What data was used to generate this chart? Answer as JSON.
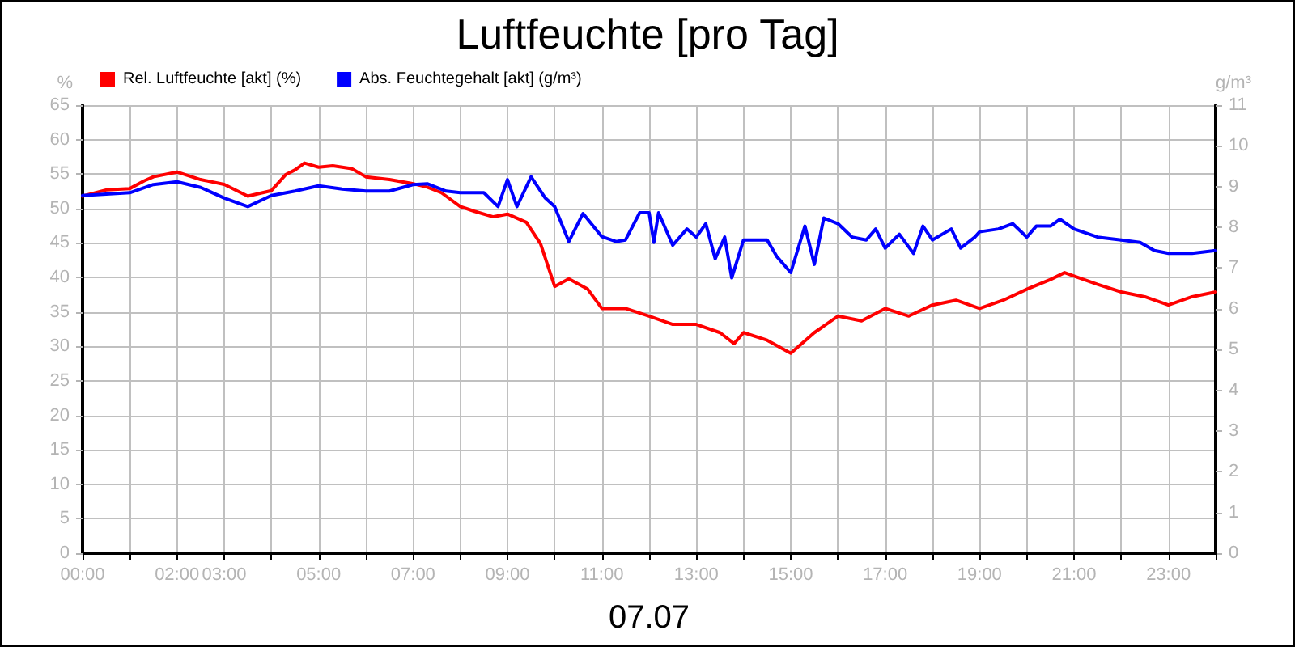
{
  "chart_data": {
    "type": "line",
    "title": "Luftfeuchte [pro Tag]",
    "xlabel": "07.07",
    "ylabel": "%",
    "y2label": "g/m³",
    "xlim": [
      0,
      24
    ],
    "xticks": [
      {
        "value": 0,
        "label": "00:00"
      },
      {
        "value": 1,
        "label": null
      },
      {
        "value": 2,
        "label": "02:00"
      },
      {
        "value": 3,
        "label": "03:00"
      },
      {
        "value": 4,
        "label": null
      },
      {
        "value": 5,
        "label": "05:00"
      },
      {
        "value": 6,
        "label": null
      },
      {
        "value": 7,
        "label": "07:00"
      },
      {
        "value": 8,
        "label": null
      },
      {
        "value": 9,
        "label": "09:00"
      },
      {
        "value": 10,
        "label": null
      },
      {
        "value": 11,
        "label": "11:00"
      },
      {
        "value": 12,
        "label": null
      },
      {
        "value": 13,
        "label": "13:00"
      },
      {
        "value": 14,
        "label": null
      },
      {
        "value": 15,
        "label": "15:00"
      },
      {
        "value": 16,
        "label": null
      },
      {
        "value": 17,
        "label": "17:00"
      },
      {
        "value": 18,
        "label": null
      },
      {
        "value": 19,
        "label": "19:00"
      },
      {
        "value": 20,
        "label": null
      },
      {
        "value": 21,
        "label": "21:00"
      },
      {
        "value": 22,
        "label": null
      },
      {
        "value": 23,
        "label": "23:00"
      },
      {
        "value": 24,
        "label": null
      }
    ],
    "ylim": [
      0,
      65
    ],
    "yticks": [
      0,
      5,
      10,
      15,
      20,
      25,
      30,
      35,
      40,
      45,
      50,
      55,
      60,
      65
    ],
    "y2lim": [
      0,
      11
    ],
    "y2ticks": [
      0,
      1,
      2,
      3,
      4,
      5,
      6,
      7,
      8,
      9,
      10,
      11
    ],
    "grid": true,
    "legend": "top left",
    "marker": "none",
    "line_style": "solid",
    "series": [
      {
        "name": "Rel. Luftfeuchte [akt] (%)",
        "color": "#ff0000",
        "x": [
          0,
          0.5,
          1,
          1.3,
          1.5,
          2,
          2.5,
          3,
          3.5,
          4,
          4.3,
          4.5,
          4.7,
          5,
          5.3,
          5.7,
          6,
          6.5,
          7,
          7.3,
          7.6,
          8,
          8.3,
          8.7,
          9,
          9.4,
          9.7,
          10,
          10.3,
          10.7,
          11,
          11.5,
          12,
          12.5,
          13,
          13.5,
          13.8,
          14,
          14.5,
          15,
          15.5,
          16,
          16.5,
          17,
          17.5,
          18,
          18.5,
          19,
          19.5,
          20,
          20.5,
          20.8,
          21,
          21.5,
          22,
          22.5,
          23,
          23.5,
          24
        ],
        "values": [
          51.8,
          52.7,
          52.9,
          54,
          54.6,
          55.3,
          54.2,
          53.5,
          51.8,
          52.6,
          54.9,
          55.6,
          56.6,
          56,
          56.2,
          55.8,
          54.6,
          54.2,
          53.6,
          53.1,
          52.3,
          50.3,
          49.6,
          48.8,
          49.2,
          48,
          44.9,
          38.7,
          39.8,
          38.3,
          35.5,
          35.5,
          34.4,
          33.2,
          33.2,
          32,
          30.4,
          32,
          30.9,
          29,
          32,
          34.4,
          33.7,
          35.5,
          34.4,
          36,
          36.7,
          35.5,
          36.7,
          38.3,
          39.7,
          40.7,
          40.2,
          39,
          37.9,
          37.2,
          36,
          37.2,
          37.9
        ]
      },
      {
        "name": "Abs. Feuchtegehalt [akt] (g/m³)",
        "color": "#0000ff",
        "axis": "y2",
        "x": [
          0,
          1,
          1.5,
          2,
          2.5,
          3,
          3.5,
          4,
          4.5,
          5,
          5.5,
          6,
          6.5,
          7,
          7.3,
          7.7,
          8,
          8.5,
          8.8,
          9,
          9.2,
          9.5,
          9.8,
          10,
          10.3,
          10.6,
          11,
          11.3,
          11.5,
          11.8,
          12,
          12.1,
          12.2,
          12.5,
          12.8,
          13,
          13.2,
          13.4,
          13.6,
          13.75,
          14,
          14.5,
          14.7,
          15,
          15.3,
          15.5,
          15.7,
          16,
          16.3,
          16.6,
          16.8,
          17,
          17.3,
          17.6,
          17.8,
          18,
          18.4,
          18.6,
          18.9,
          19,
          19.4,
          19.7,
          20,
          20.2,
          20.5,
          20.7,
          21,
          21.5,
          22,
          22.4,
          22.7,
          23,
          23.5,
          24
        ],
        "values": [
          8.78,
          8.85,
          9.05,
          9.12,
          8.98,
          8.72,
          8.51,
          8.78,
          8.89,
          9.02,
          8.94,
          8.89,
          8.89,
          9.05,
          9.07,
          8.89,
          8.85,
          8.85,
          8.51,
          9.17,
          8.51,
          9.24,
          8.72,
          8.51,
          7.65,
          8.34,
          7.77,
          7.65,
          7.69,
          8.36,
          8.36,
          7.63,
          8.36,
          7.56,
          7.96,
          7.76,
          8.09,
          7.23,
          7.76,
          6.76,
          7.69,
          7.69,
          7.29,
          6.89,
          8.03,
          7.09,
          8.23,
          8.09,
          7.76,
          7.69,
          7.96,
          7.49,
          7.83,
          7.36,
          8.03,
          7.69,
          7.96,
          7.49,
          7.76,
          7.89,
          7.96,
          8.09,
          7.76,
          8.03,
          8.03,
          8.2,
          7.96,
          7.76,
          7.69,
          7.63,
          7.43,
          7.36,
          7.36,
          7.43
        ]
      }
    ]
  }
}
